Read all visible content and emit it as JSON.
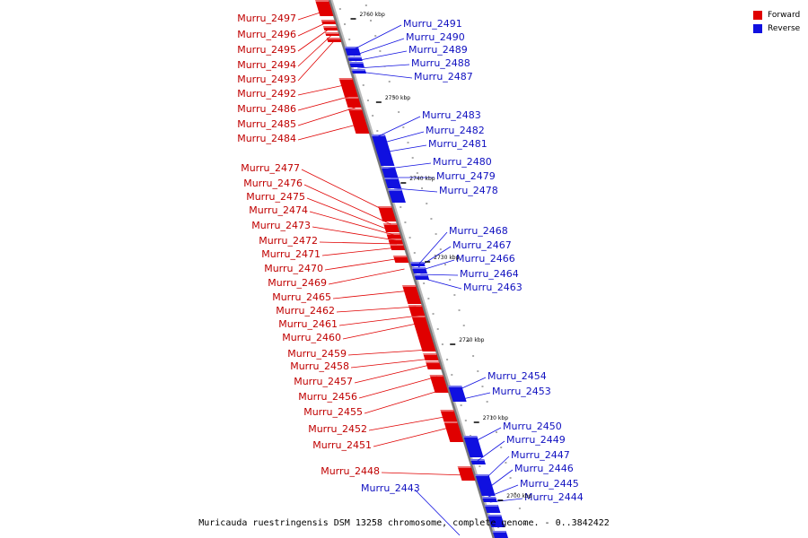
{
  "caption": "Muricauda ruestringensis DSM 13258 chromosome, complete genome. - 0..3842422",
  "legend": [
    {
      "label": "Forward",
      "color": "#e00000"
    },
    {
      "label": "Reverse",
      "color": "#1010e0"
    }
  ],
  "ticks": [
    "2760 kbp",
    "2750 kbp",
    "2740 kbp",
    "2730 kbp",
    "2720 kbp",
    "2710 kbp",
    "2700 kbp"
  ],
  "forward_genes": [
    "Murru_2497",
    "Murru_2496",
    "Murru_2495",
    "Murru_2494",
    "Murru_2493",
    "Murru_2492",
    "Murru_2486",
    "Murru_2485",
    "Murru_2484",
    "Murru_2477",
    "Murru_2476",
    "Murru_2475",
    "Murru_2474",
    "Murru_2473",
    "Murru_2472",
    "Murru_2471",
    "Murru_2470",
    "Murru_2469",
    "Murru_2465",
    "Murru_2462",
    "Murru_2461",
    "Murru_2460",
    "Murru_2459",
    "Murru_2458",
    "Murru_2457",
    "Murru_2456",
    "Murru_2455",
    "Murru_2452",
    "Murru_2451",
    "Murru_2448"
  ],
  "reverse_genes": [
    "Murru_2491",
    "Murru_2490",
    "Murru_2489",
    "Murru_2488",
    "Murru_2487",
    "Murru_2483",
    "Murru_2482",
    "Murru_2481",
    "Murru_2480",
    "Murru_2479",
    "Murru_2478",
    "Murru_2468",
    "Murru_2467",
    "Murru_2466",
    "Murru_2464",
    "Murru_2463",
    "Murru_2454",
    "Murru_2453",
    "Murru_2450",
    "Murru_2449",
    "Murru_2447",
    "Murru_2446",
    "Murru_2445",
    "Murru_2444",
    "Murru_2443"
  ]
}
